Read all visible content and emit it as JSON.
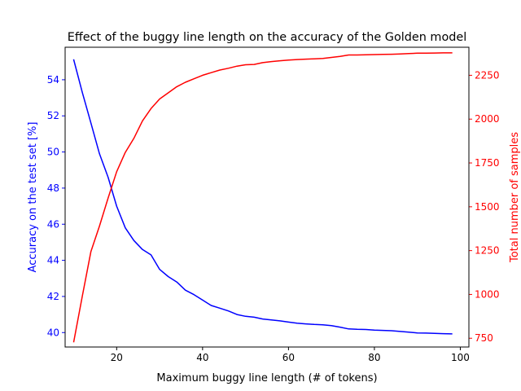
{
  "chart_data": {
    "type": "line",
    "title": "Effect of the buggy line length on the accuracy of the Golden model",
    "xlabel": "Maximum buggy line length (# of tokens)",
    "ylabel_left": "Accuracy on the test set [%]",
    "ylabel_right": "Total number of samples",
    "xlim": [
      8,
      102
    ],
    "ylim_left": [
      39.2,
      55.8
    ],
    "ylim_right": [
      700,
      2410
    ],
    "x_ticks": [
      20,
      40,
      60,
      80,
      100
    ],
    "y_ticks_left": [
      40,
      42,
      44,
      46,
      48,
      50,
      52,
      54
    ],
    "y_ticks_right": [
      750,
      1000,
      1250,
      1500,
      1750,
      2000,
      2250
    ],
    "grid": false,
    "colors": {
      "left_axis": "#0000ff",
      "right_axis": "#ff0000",
      "text": "#000000"
    },
    "series": [
      {
        "axis": "left",
        "color": "#0000ff",
        "x": [
          10,
          12,
          14,
          16,
          18,
          20,
          22,
          24,
          26,
          28,
          30,
          32,
          34,
          36,
          38,
          40,
          42,
          44,
          46,
          48,
          50,
          52,
          54,
          56,
          58,
          60,
          62,
          64,
          66,
          68,
          70,
          72,
          74,
          76,
          78,
          80,
          82,
          84,
          86,
          88,
          90,
          92,
          94,
          96,
          98
        ],
        "y": [
          55.1,
          53.3,
          51.6,
          49.9,
          48.6,
          47.0,
          45.8,
          45.1,
          44.6,
          44.3,
          43.5,
          43.1,
          42.8,
          42.35,
          42.1,
          41.8,
          41.5,
          41.35,
          41.2,
          41.0,
          40.9,
          40.85,
          40.75,
          40.7,
          40.65,
          40.58,
          40.52,
          40.48,
          40.45,
          40.43,
          40.38,
          40.3,
          40.2,
          40.18,
          40.17,
          40.14,
          40.12,
          40.1,
          40.06,
          40.02,
          39.98,
          39.97,
          39.96,
          39.94,
          39.93
        ]
      },
      {
        "axis": "right",
        "color": "#ff0000",
        "x": [
          10,
          12,
          14,
          16,
          18,
          20,
          22,
          24,
          26,
          28,
          30,
          32,
          34,
          36,
          38,
          40,
          42,
          44,
          46,
          48,
          50,
          52,
          54,
          56,
          58,
          60,
          62,
          64,
          66,
          68,
          70,
          72,
          74,
          76,
          78,
          80,
          82,
          84,
          86,
          88,
          90,
          92,
          94,
          96,
          98
        ],
        "y": [
          730,
          990,
          1245,
          1390,
          1550,
          1700,
          1810,
          1890,
          1990,
          2060,
          2115,
          2150,
          2185,
          2210,
          2230,
          2250,
          2265,
          2280,
          2290,
          2302,
          2310,
          2312,
          2322,
          2328,
          2333,
          2337,
          2340,
          2342,
          2344,
          2346,
          2352,
          2358,
          2366,
          2366,
          2367,
          2368,
          2369,
          2370,
          2372,
          2374,
          2376,
          2376,
          2377,
          2378,
          2378
        ]
      }
    ]
  }
}
